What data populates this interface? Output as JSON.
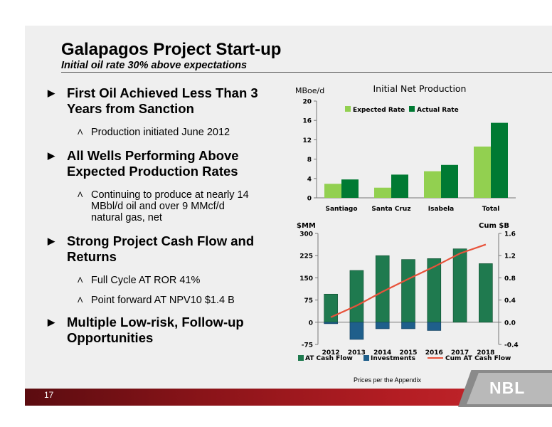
{
  "slide": {
    "title": "Galapagos Project Start-up",
    "subtitle": "Initial oil rate 30% above expectations",
    "page_number": "17",
    "note": "Prices per the Appendix",
    "logo": "NBL",
    "bullets": [
      {
        "text": "First Oil Achieved Less Than 3 Years from Sanction",
        "subs": [
          "Production initiated June 2012"
        ]
      },
      {
        "text": "All Wells Performing Above Expected Production Rates",
        "subs": [
          "Continuing to produce at nearly 14 MBbl/d oil and over 9 MMcf/d natural gas, net"
        ]
      },
      {
        "text": "Strong Project Cash Flow and Returns",
        "subs": [
          "Full Cycle AT ROR 41%",
          "Point forward AT NPV10 $1.4 B"
        ]
      },
      {
        "text": "Multiple Low-risk, Follow-up Opportunities",
        "subs": []
      }
    ],
    "colors": {
      "light_green": "#92d050",
      "dark_green": "#007a33",
      "cash_flow": "#1f7a4f",
      "investment": "#1f5f8b",
      "line": "#e8523a",
      "footer_red": "#b31d23"
    }
  },
  "chart_data": [
    {
      "type": "bar",
      "title": "Initial Net Production",
      "ylabel": "MBoe/d",
      "xlabel": "",
      "ylim": [
        0,
        20
      ],
      "yticks": [
        0,
        4,
        8,
        12,
        16,
        20
      ],
      "categories": [
        "Santiago",
        "Santa Cruz",
        "Isabela",
        "Total"
      ],
      "series": [
        {
          "name": "Expected Rate",
          "values": [
            2.9,
            2.1,
            5.5,
            10.6
          ]
        },
        {
          "name": "Actual Rate",
          "values": [
            3.8,
            4.8,
            6.8,
            15.5
          ]
        }
      ],
      "legend": "top",
      "grid": false
    },
    {
      "type": "bar",
      "title": "",
      "ylabel": "$MM",
      "y2label": "Cum $B",
      "xlabel": "",
      "ylim": [
        -75,
        300
      ],
      "yticks": [
        -75,
        0,
        75,
        150,
        225,
        300
      ],
      "y2lim": [
        -0.4,
        1.6
      ],
      "y2ticks": [
        "-0.4",
        "0.0",
        "0.4",
        "0.8",
        "1.2",
        "1.6"
      ],
      "categories": [
        "2012",
        "2013",
        "2014",
        "2015",
        "2016",
        "2017",
        "2018"
      ],
      "series": [
        {
          "name": "AT Cash Flow",
          "kind": "bar",
          "axis": "left",
          "values": [
            95,
            175,
            225,
            212,
            215,
            248,
            198
          ]
        },
        {
          "name": "Investments",
          "kind": "bar",
          "axis": "left",
          "values": [
            -5,
            -58,
            -22,
            -22,
            -28,
            0,
            0
          ]
        },
        {
          "name": "Cum AT Cash Flow",
          "kind": "line",
          "axis": "right",
          "values": [
            0.09,
            0.3,
            0.55,
            0.78,
            1.0,
            1.24,
            1.4
          ]
        }
      ],
      "legend": "bottom",
      "grid": false
    }
  ]
}
